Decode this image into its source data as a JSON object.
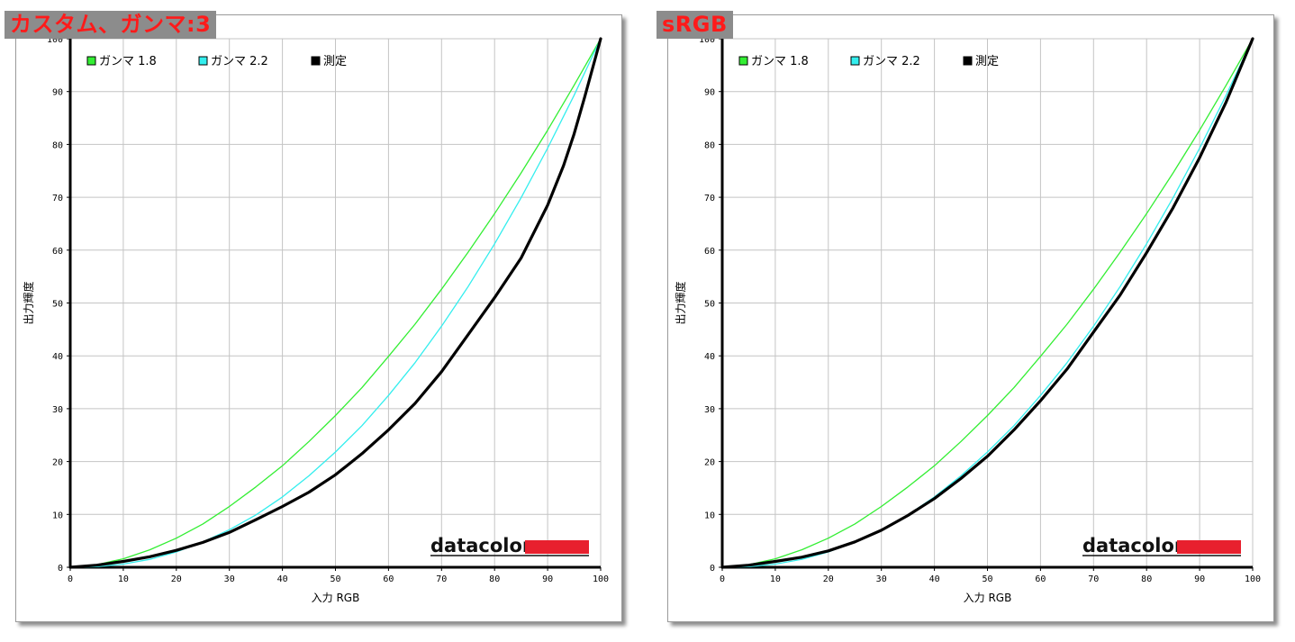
{
  "charts": [
    {
      "tag": "カスタム、ガンマ:3",
      "logo": "datacolor",
      "chart_data": {
        "type": "line",
        "title": "",
        "xlabel": "入力 RGB",
        "ylabel": "出力輝度",
        "xlim": [
          0,
          100
        ],
        "ylim": [
          0,
          100
        ],
        "xticks": [
          0,
          10,
          20,
          30,
          40,
          50,
          60,
          70,
          80,
          90,
          100
        ],
        "yticks": [
          0,
          10,
          20,
          30,
          40,
          50,
          60,
          70,
          80,
          90,
          100
        ],
        "grid": true,
        "legend_position": "top-left",
        "series": [
          {
            "name": "ガンマ 1.8",
            "color": "#33ee33",
            "x": [
              0,
              5,
              10,
              15,
              20,
              25,
              30,
              35,
              40,
              45,
              50,
              55,
              60,
              65,
              70,
              75,
              80,
              85,
              90,
              95,
              100
            ],
            "y": [
              0,
              0.5,
              1.6,
              3.3,
              5.5,
              8.2,
              11.5,
              15.2,
              19.2,
              23.8,
              28.7,
              34.0,
              39.9,
              46.0,
              52.6,
              59.6,
              66.9,
              74.6,
              82.7,
              91.2,
              100
            ]
          },
          {
            "name": "ガンマ 2.2",
            "color": "#33eeee",
            "x": [
              0,
              5,
              10,
              15,
              20,
              25,
              30,
              35,
              40,
              45,
              50,
              55,
              60,
              65,
              70,
              75,
              80,
              85,
              90,
              95,
              100
            ],
            "y": [
              0,
              0.1,
              0.6,
              1.5,
              2.9,
              4.8,
              7.1,
              9.9,
              13.3,
              17.3,
              21.8,
              26.8,
              32.5,
              38.7,
              45.6,
              53.1,
              61.2,
              69.9,
              79.3,
              89.3,
              100
            ]
          },
          {
            "name": "測定",
            "color": "#000000",
            "x": [
              0,
              5,
              10,
              15,
              20,
              25,
              30,
              35,
              40,
              45,
              50,
              55,
              60,
              65,
              70,
              75,
              80,
              85,
              90,
              93,
              95,
              97,
              100
            ],
            "y": [
              0,
              0.4,
              1.1,
              2.0,
              3.2,
              4.7,
              6.6,
              9.0,
              11.5,
              14.2,
              17.5,
              21.5,
              26.0,
              31.0,
              37.0,
              44.0,
              51.0,
              58.5,
              68.5,
              76.0,
              82.0,
              89.0,
              100
            ]
          }
        ]
      }
    },
    {
      "tag": "sRGB",
      "logo": "datacolor",
      "chart_data": {
        "type": "line",
        "title": "",
        "xlabel": "入力 RGB",
        "ylabel": "出力輝度",
        "xlim": [
          0,
          100
        ],
        "ylim": [
          0,
          100
        ],
        "xticks": [
          0,
          10,
          20,
          30,
          40,
          50,
          60,
          70,
          80,
          90,
          100
        ],
        "yticks": [
          0,
          10,
          20,
          30,
          40,
          50,
          60,
          70,
          80,
          90,
          100
        ],
        "grid": true,
        "legend_position": "top-left",
        "series": [
          {
            "name": "ガンマ 1.8",
            "color": "#33ee33",
            "x": [
              0,
              5,
              10,
              15,
              20,
              25,
              30,
              35,
              40,
              45,
              50,
              55,
              60,
              65,
              70,
              75,
              80,
              85,
              90,
              95,
              100
            ],
            "y": [
              0,
              0.5,
              1.6,
              3.3,
              5.5,
              8.2,
              11.5,
              15.2,
              19.2,
              23.8,
              28.7,
              34.0,
              39.9,
              46.0,
              52.6,
              59.6,
              66.9,
              74.6,
              82.7,
              91.2,
              100
            ]
          },
          {
            "name": "ガンマ 2.2",
            "color": "#33eeee",
            "x": [
              0,
              5,
              10,
              15,
              20,
              25,
              30,
              35,
              40,
              45,
              50,
              55,
              60,
              65,
              70,
              75,
              80,
              85,
              90,
              95,
              100
            ],
            "y": [
              0,
              0.1,
              0.6,
              1.5,
              2.9,
              4.8,
              7.1,
              9.9,
              13.3,
              17.3,
              21.8,
              26.8,
              32.5,
              38.7,
              45.6,
              53.1,
              61.2,
              69.9,
              79.3,
              89.3,
              100
            ]
          },
          {
            "name": "測定",
            "color": "#000000",
            "x": [
              0,
              5,
              10,
              15,
              20,
              25,
              30,
              35,
              40,
              45,
              50,
              55,
              60,
              65,
              70,
              75,
              80,
              85,
              90,
              95,
              100
            ],
            "y": [
              0,
              0.4,
              1.1,
              1.9,
              3.1,
              4.8,
              7.0,
              9.8,
              13.0,
              16.8,
              21.0,
              26.0,
              31.5,
              37.5,
              44.5,
              51.5,
              59.5,
              68.0,
              77.5,
              88.0,
              100
            ]
          }
        ]
      }
    }
  ]
}
